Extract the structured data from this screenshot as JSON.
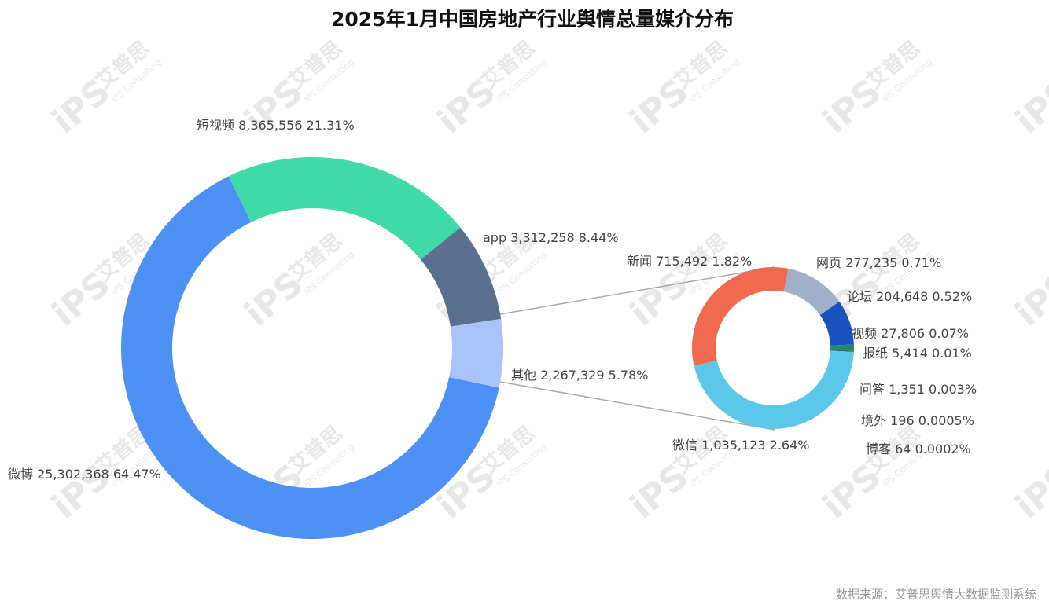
{
  "chart_data": [
    {
      "type": "donut",
      "title": "2025年1月中国房地产行业舆情总量媒介分布",
      "categories": [
        "微博",
        "短视频",
        "app",
        "其他"
      ],
      "values": [
        25302368,
        8365556,
        3312258,
        2267329
      ],
      "value_labels": [
        "25,302,368",
        "8,365,556",
        "3,312,258",
        "2,267,329"
      ],
      "percents": [
        64.47,
        21.31,
        8.44,
        5.78
      ],
      "percent_labels": [
        "64.47%",
        "21.31%",
        "8.44%",
        "5.78%"
      ],
      "colors": [
        "#4d91f5",
        "#40d9a8",
        "#5b6f8f",
        "#a9c3f8"
      ]
    },
    {
      "type": "donut",
      "categories": [
        "微信",
        "新闻",
        "网页",
        "论坛",
        "视频",
        "报纸",
        "问答",
        "境外",
        "博客"
      ],
      "values": [
        1035123,
        715492,
        277235,
        204648,
        27806,
        5414,
        1351,
        196,
        64
      ],
      "value_labels": [
        "1,035,123",
        "715,492",
        "277,235",
        "204,648",
        "27,806",
        "5,414",
        "1,351",
        "196",
        "64"
      ],
      "percents": [
        2.64,
        1.82,
        0.71,
        0.52,
        0.07,
        0.01,
        0.003,
        0.0005,
        0.0002
      ],
      "percent_labels": [
        "2.64%",
        "1.82%",
        "0.71%",
        "0.52%",
        "0.07%",
        "0.01%",
        "0.003%",
        "0.0005%",
        "0.0002%"
      ],
      "colors": [
        "#5bc8ea",
        "#f06a50",
        "#9fb0c8",
        "#1a52c0",
        "#1f8a6e",
        "#2e6b5e",
        "#888888",
        "#aaaaaa",
        "#cccccc"
      ]
    }
  ],
  "source": "数据来源：艾普思舆情大数据监测系统",
  "watermark": {
    "logo": "iPS",
    "brand": "艾普思",
    "sub": "IPS Consulting"
  }
}
